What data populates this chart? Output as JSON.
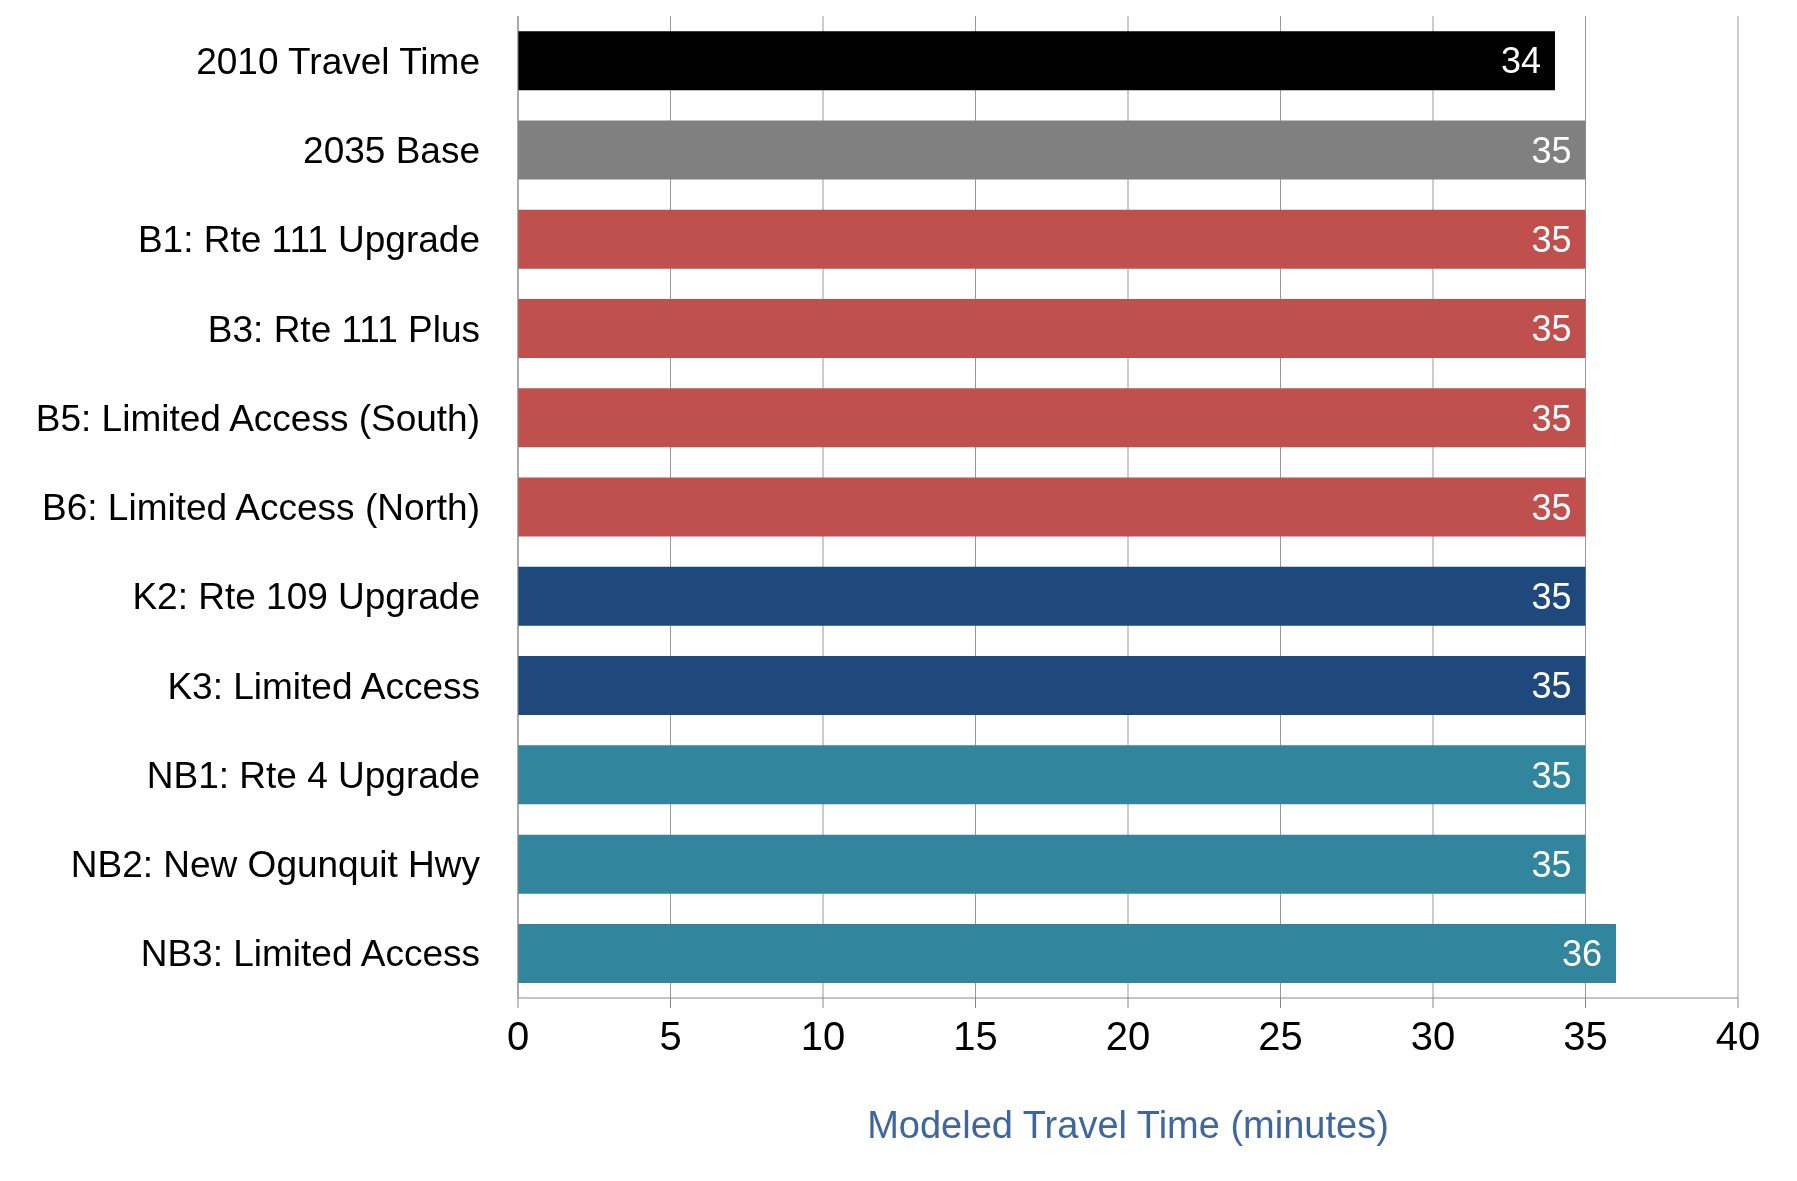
{
  "chart_data": {
    "type": "bar",
    "orientation": "horizontal",
    "xlabel": "Modeled Travel Time (minutes)",
    "categories": [
      "2010 Travel Time",
      "2035 Base",
      "B1: Rte 111 Upgrade",
      "B3: Rte 111 Plus",
      "B5: Limited Access (South)",
      "B6: Limited Access (North)",
      "K2: Rte 109 Upgrade",
      "K3: Limited Access",
      "NB1: Rte 4 Upgrade",
      "NB2: New Ogunquit Hwy",
      "NB3: Limited Access"
    ],
    "values": [
      34,
      35,
      35,
      35,
      35,
      35,
      35,
      35,
      35,
      35,
      36
    ],
    "colors": [
      "#000000",
      "#808080",
      "#c0504d",
      "#c0504d",
      "#c0504d",
      "#c0504d",
      "#1f497d",
      "#1f497d",
      "#31859c",
      "#31859c",
      "#31859c"
    ],
    "xlim": [
      0,
      40
    ],
    "xticks": [
      0,
      5,
      10,
      15,
      20,
      25,
      30,
      35,
      40
    ],
    "grid": "x",
    "data_labels": true
  }
}
